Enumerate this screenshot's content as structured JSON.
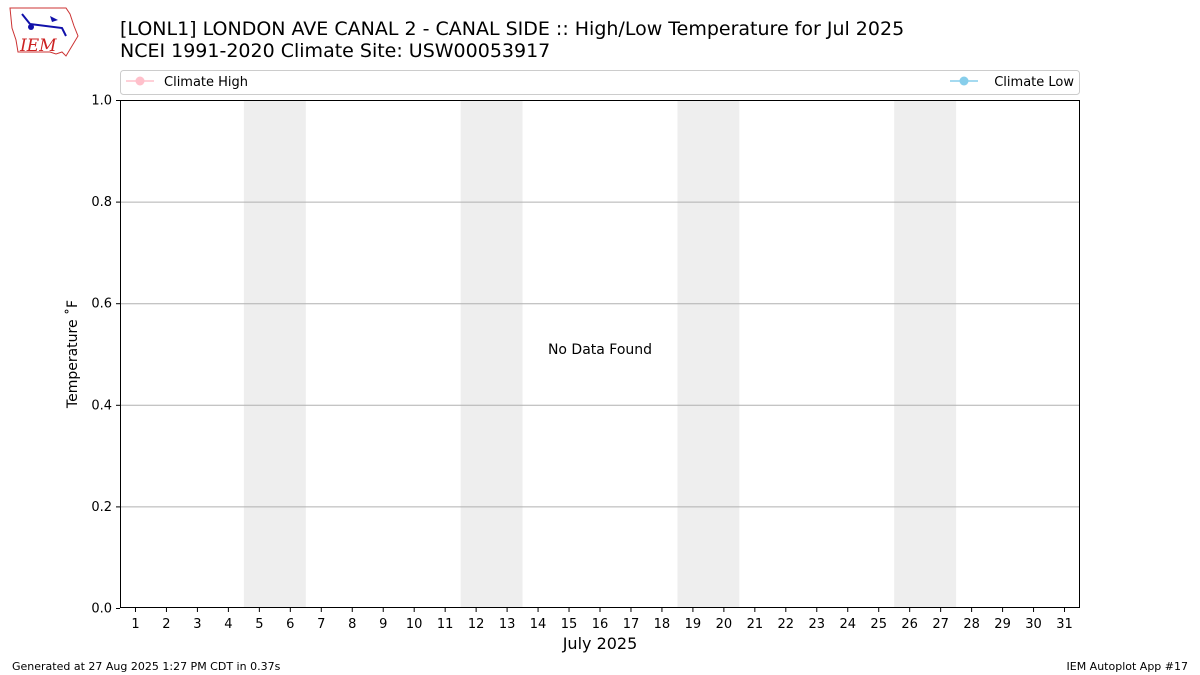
{
  "header": {
    "title_line1": "[LONL1] LONDON AVE CANAL 2  - CANAL SIDE :: High/Low Temperature for Jul 2025",
    "title_line2": "NCEI 1991-2020 Climate Site: USW00053917",
    "logo_text": "IEM"
  },
  "legend": {
    "items": [
      {
        "label": "Climate High",
        "color": "#ffc0cb"
      },
      {
        "label": "Climate Low",
        "color": "#87ceeb"
      }
    ]
  },
  "footer": {
    "left": "Generated at 27 Aug 2025 1:27 PM CDT in 0.37s",
    "right": "IEM Autoplot App #17"
  },
  "message": "No Data Found",
  "chart_data": {
    "type": "line",
    "title": "[LONL1] LONDON AVE CANAL 2  - CANAL SIDE :: High/Low Temperature for Jul 2025",
    "subtitle": "NCEI 1991-2020 Climate Site: USW00053917",
    "xlabel": "July 2025",
    "ylabel": "Temperature ˚F",
    "x_categories": [
      "1",
      "2",
      "3",
      "4",
      "5",
      "6",
      "7",
      "8",
      "9",
      "10",
      "11",
      "12",
      "13",
      "14",
      "15",
      "16",
      "17",
      "18",
      "19",
      "20",
      "21",
      "22",
      "23",
      "24",
      "25",
      "26",
      "27",
      "28",
      "29",
      "30",
      "31"
    ],
    "xlim": [
      0.5,
      31.5
    ],
    "ylim": [
      0.0,
      1.0
    ],
    "yticks": [
      "0.0",
      "0.2",
      "0.4",
      "0.6",
      "0.8",
      "1.0"
    ],
    "grid": "horizontal",
    "weekend_shading": [
      [
        5,
        6
      ],
      [
        12,
        13
      ],
      [
        19,
        20
      ],
      [
        26,
        27
      ]
    ],
    "weekend_color": "#eeeeee",
    "series": [
      {
        "name": "Climate High",
        "color": "#ffc0cb",
        "values": []
      },
      {
        "name": "Climate Low",
        "color": "#87ceeb",
        "values": []
      }
    ],
    "legend_position": "top"
  }
}
